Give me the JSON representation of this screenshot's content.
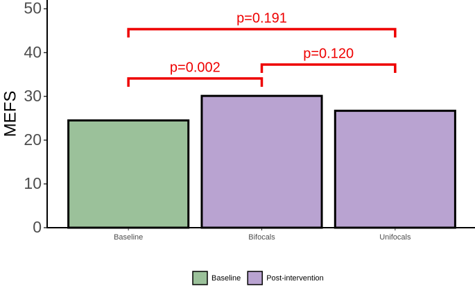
{
  "chart_data": {
    "type": "bar",
    "y_label": "MEFS",
    "categories": [
      "Baseline",
      "Bifocals",
      "Unifocals"
    ],
    "series": [
      {
        "name": "Baseline",
        "color": "#9bc19a",
        "values": [
          24.5,
          null,
          null
        ]
      },
      {
        "name": "Post-intervention",
        "color": "#b9a3d1",
        "values": [
          null,
          30.1,
          26.7
        ]
      }
    ],
    "ylim": [
      0,
      52
    ],
    "yticks": [
      0,
      10,
      20,
      30,
      40,
      50
    ],
    "annotations": [
      "p=0.002",
      "p=0.120",
      "p=0.191"
    ],
    "annotation_color": "#ee0000",
    "grid": false
  }
}
